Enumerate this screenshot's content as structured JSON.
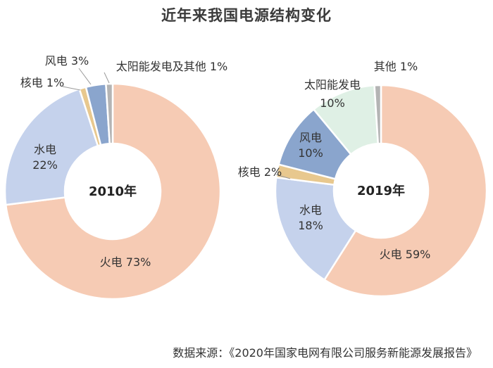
{
  "title": "近年来我国电源结构变化",
  "source": "数据来源：《2020年国家电网有限公司服务新能源发展报告》",
  "colors": {
    "火电": "#f6cbb4",
    "水电": "#c5d2ec",
    "核电": "#e8c88e",
    "风电": "#8aa5cd",
    "太阳能发电": "#dff0e5",
    "other": "#b4b4b4"
  },
  "chart_data": [
    {
      "type": "pie",
      "donut": true,
      "center_label": "2010年",
      "slices": [
        {
          "name": "火电",
          "value": 73,
          "label": "火电 73%",
          "color_key": "火电"
        },
        {
          "name": "水电",
          "value": 22,
          "label": "水电\n22%",
          "color_key": "水电"
        },
        {
          "name": "核电",
          "value": 1,
          "label": "核电 1%",
          "color_key": "核电"
        },
        {
          "name": "风电",
          "value": 3,
          "label": "风电 3%",
          "color_key": "风电"
        },
        {
          "name": "太阳能发电及其他",
          "value": 1,
          "label": "太阳能发电及其他 1%",
          "color_key": "other"
        }
      ]
    },
    {
      "type": "pie",
      "donut": true,
      "center_label": "2019年",
      "slices": [
        {
          "name": "火电",
          "value": 59,
          "label": "火电 59%",
          "color_key": "火电"
        },
        {
          "name": "水电",
          "value": 18,
          "label": "水电\n18%",
          "color_key": "水电"
        },
        {
          "name": "核电",
          "value": 2,
          "label": "核电 2%",
          "color_key": "核电"
        },
        {
          "name": "风电",
          "value": 10,
          "label": "风电\n10%",
          "color_key": "风电"
        },
        {
          "name": "太阳能发电",
          "value": 10,
          "label": "太阳能发电\n10%",
          "color_key": "太阳能发电"
        },
        {
          "name": "其他",
          "value": 1,
          "label": "其他 1%",
          "color_key": "other"
        }
      ]
    }
  ]
}
